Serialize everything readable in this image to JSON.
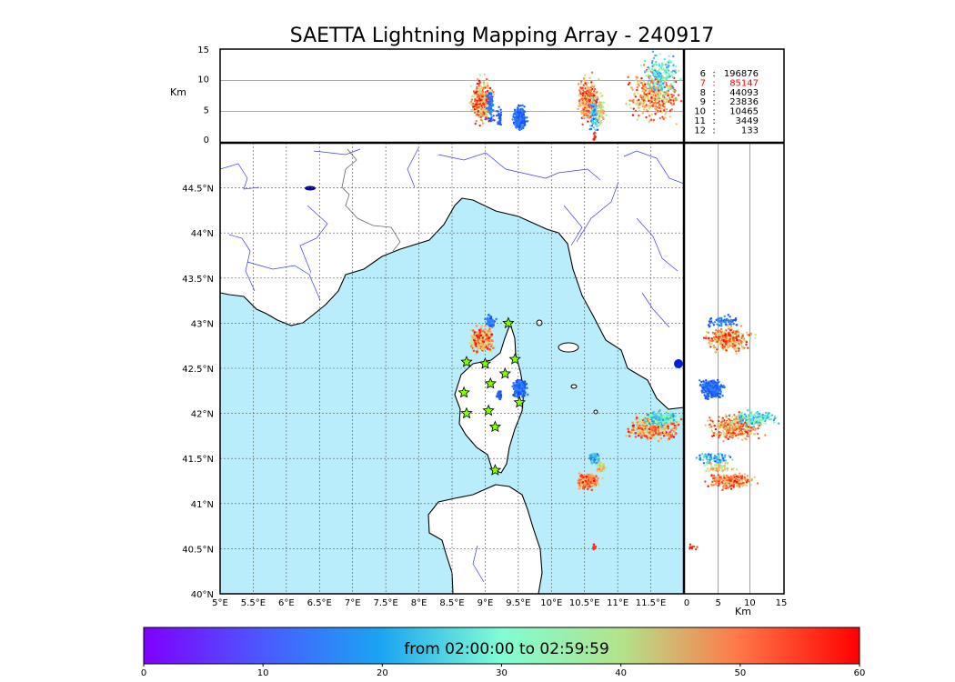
{
  "title": "SAETTA Lightning Mapping Array - 240917",
  "colors": {
    "sea": "#b9edfb",
    "land": "#ffffff",
    "rivers": "#3a3aff",
    "border": "#555555",
    "grid": "#555555",
    "stations": "#80ff00",
    "highlight_row": "#ff0000"
  },
  "station_icon": "star-icon",
  "top_panel": {
    "ylabel": "Km",
    "yticks": [
      "0",
      "5",
      "10",
      "15"
    ],
    "stats": [
      {
        "n": "6",
        "count": "196876"
      },
      {
        "n": "7",
        "count": "85147"
      },
      {
        "n": "8",
        "count": "44093"
      },
      {
        "n": "9",
        "count": "23836"
      },
      {
        "n": "10",
        "count": "10465"
      },
      {
        "n": "11",
        "count": "3449"
      },
      {
        "n": "12",
        "count": "133"
      }
    ],
    "stats_sep": ":"
  },
  "map": {
    "lon_labels": [
      "5°E",
      "5.5°E",
      "6°E",
      "6.5°E",
      "7°E",
      "7.5°E",
      "8°E",
      "8.5°E",
      "9°E",
      "9.5°E",
      "10°E",
      "10.5°E",
      "11°E",
      "11.5°E"
    ],
    "lat_labels": [
      "40°N",
      "40.5°N",
      "41°N",
      "41.5°N",
      "42°N",
      "42.5°N",
      "43°N",
      "43.5°N",
      "44°N",
      "44.5°N"
    ]
  },
  "right_panel": {
    "xlabel": "Km",
    "xticks": [
      "0",
      "5",
      "10",
      "15"
    ]
  },
  "colorbar": {
    "label": "from 02:00:00 to 02:59:59",
    "ticks": [
      "0",
      "10",
      "20",
      "30",
      "40",
      "50",
      "60"
    ],
    "colormap": "rainbow",
    "range": [
      0,
      60
    ]
  },
  "chart_data": {
    "type": "scatter",
    "lon_range": [
      5,
      12
    ],
    "lat_range": [
      40,
      45
    ],
    "alt_range": [
      0,
      15
    ],
    "time_range_min": [
      0,
      60
    ],
    "stations": [
      {
        "lon": 9.35,
        "lat": 43.0
      },
      {
        "lon": 8.72,
        "lat": 42.57
      },
      {
        "lon": 9.0,
        "lat": 42.55
      },
      {
        "lon": 9.45,
        "lat": 42.6
      },
      {
        "lon": 9.3,
        "lat": 42.44
      },
      {
        "lon": 9.08,
        "lat": 42.33
      },
      {
        "lon": 8.68,
        "lat": 42.23
      },
      {
        "lon": 9.52,
        "lat": 42.12
      },
      {
        "lon": 8.72,
        "lat": 42.0
      },
      {
        "lon": 9.05,
        "lat": 42.03
      },
      {
        "lon": 9.15,
        "lat": 41.85
      },
      {
        "lon": 9.15,
        "lat": 41.37
      }
    ],
    "lightning_cells": [
      {
        "lon": 8.95,
        "lat": 42.82,
        "dlon": 0.12,
        "dlat": 0.1,
        "alt": 6.5,
        "dalt": 2.5,
        "t": [
          35,
          60
        ],
        "n": 380
      },
      {
        "lon": 9.08,
        "lat": 43.02,
        "dlon": 0.05,
        "dlat": 0.05,
        "alt": 6,
        "dalt": 2,
        "t": [
          5,
          12
        ],
        "n": 70
      },
      {
        "lon": 9.52,
        "lat": 42.28,
        "dlon": 0.07,
        "dlat": 0.07,
        "alt": 4,
        "dalt": 1.5,
        "t": [
          5,
          12
        ],
        "n": 230
      },
      {
        "lon": 9.22,
        "lat": 42.2,
        "dlon": 0.03,
        "dlat": 0.04,
        "alt": 4,
        "dalt": 1,
        "t": [
          5,
          10
        ],
        "n": 30
      },
      {
        "lon": 11.55,
        "lat": 41.85,
        "dlon": 0.28,
        "dlat": 0.1,
        "alt": 7.5,
        "dalt": 3,
        "t": [
          35,
          60
        ],
        "n": 380
      },
      {
        "lon": 11.65,
        "lat": 41.95,
        "dlon": 0.2,
        "dlat": 0.06,
        "alt": 11,
        "dalt": 2.5,
        "t": [
          10,
          35
        ],
        "n": 170
      },
      {
        "lon": 10.55,
        "lat": 41.25,
        "dlon": 0.12,
        "dlat": 0.06,
        "alt": 7,
        "dalt": 2.5,
        "t": [
          40,
          60
        ],
        "n": 260
      },
      {
        "lon": 10.65,
        "lat": 41.5,
        "dlon": 0.06,
        "dlat": 0.05,
        "alt": 4.5,
        "dalt": 2,
        "t": [
          5,
          25
        ],
        "n": 80
      },
      {
        "lon": 10.75,
        "lat": 41.4,
        "dlon": 0.05,
        "dlat": 0.04,
        "alt": 5,
        "dalt": 2,
        "t": [
          30,
          50
        ],
        "n": 60
      },
      {
        "lon": 10.65,
        "lat": 40.52,
        "dlon": 0.02,
        "dlat": 0.02,
        "alt": 1,
        "dalt": 0.5,
        "t": [
          55,
          60
        ],
        "n": 10
      }
    ]
  }
}
